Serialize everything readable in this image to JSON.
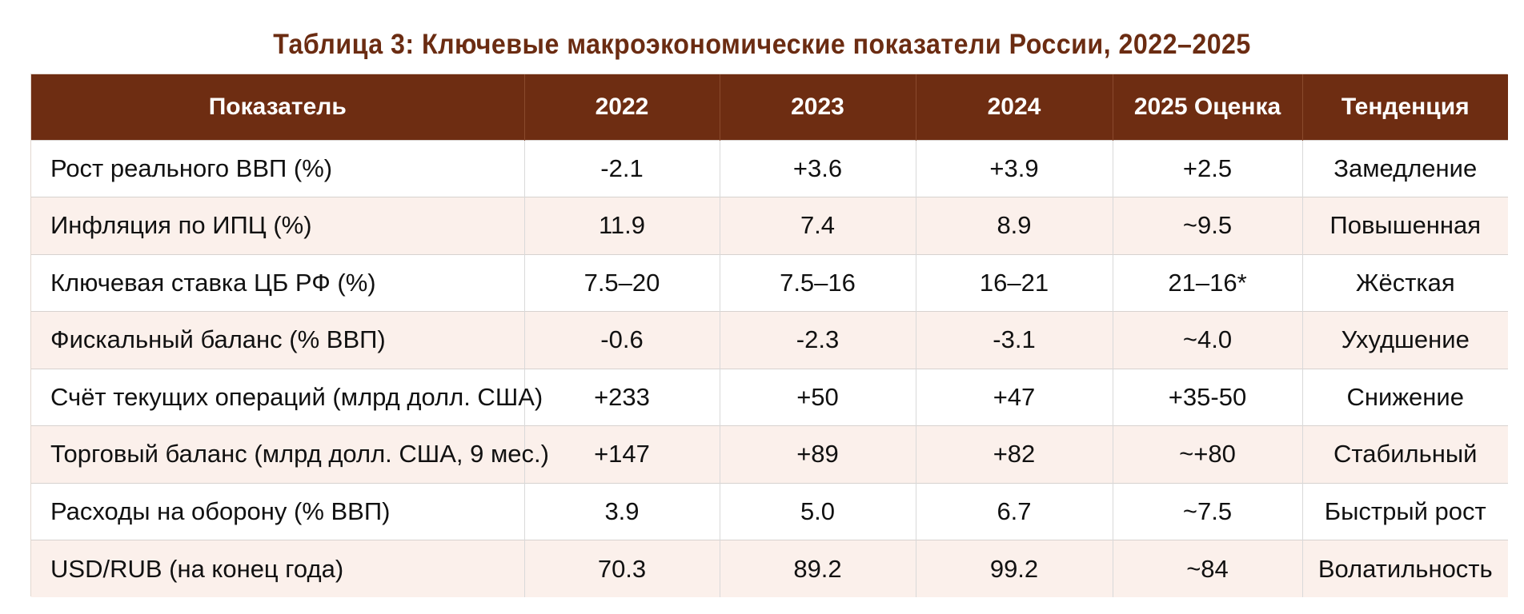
{
  "title": "Таблица 3: Ключевые макроэкономические показатели России, 2022–2025",
  "table": {
    "headers": [
      "Показатель",
      "2022",
      "2023",
      "2024",
      "2025 Оценка",
      "Тенденция"
    ],
    "rows": [
      {
        "indicator": "Рост реального ВВП (%)",
        "y2022": "-2.1",
        "y2023": "+3.6",
        "y2024": "+3.9",
        "y2025": "+2.5",
        "trend": "Замедление"
      },
      {
        "indicator": "Инфляция по ИПЦ (%)",
        "y2022": "11.9",
        "y2023": "7.4",
        "y2024": "8.9",
        "y2025": "~9.5",
        "trend": "Повышенная"
      },
      {
        "indicator": "Ключевая ставка ЦБ РФ (%)",
        "y2022": "7.5–20",
        "y2023": "7.5–16",
        "y2024": "16–21",
        "y2025": "21–16*",
        "trend": "Жёсткая"
      },
      {
        "indicator": "Фискальный баланс (% ВВП)",
        "y2022": "-0.6",
        "y2023": "-2.3",
        "y2024": "-3.1",
        "y2025": "~4.0",
        "trend": "Ухудшение"
      },
      {
        "indicator": "Счёт текущих операций (млрд долл. США)",
        "y2022": "+233",
        "y2023": "+50",
        "y2024": "+47",
        "y2025": "+35-50",
        "trend": "Снижение"
      },
      {
        "indicator": "Торговый баланс (млрд долл. США, 9 мес.)",
        "y2022": "+147",
        "y2023": "+89",
        "y2024": "+82",
        "y2025": "~+80",
        "trend": "Стабильный"
      },
      {
        "indicator": "Расходы на оборону (% ВВП)",
        "y2022": "3.9",
        "y2023": "5.0",
        "y2024": "6.7",
        "y2025": "~7.5",
        "trend": "Быстрый рост"
      },
      {
        "indicator": "USD/RUB (на конец года)",
        "y2022": "70.3",
        "y2023": "89.2",
        "y2024": "99.2",
        "y2025": "~84",
        "trend": "Волатильность"
      }
    ]
  },
  "colors": {
    "title": "#6b2c12",
    "header_bg": "#6e2d12",
    "header_text": "#ffffff",
    "stripe_bg": "#fbf0eb"
  }
}
